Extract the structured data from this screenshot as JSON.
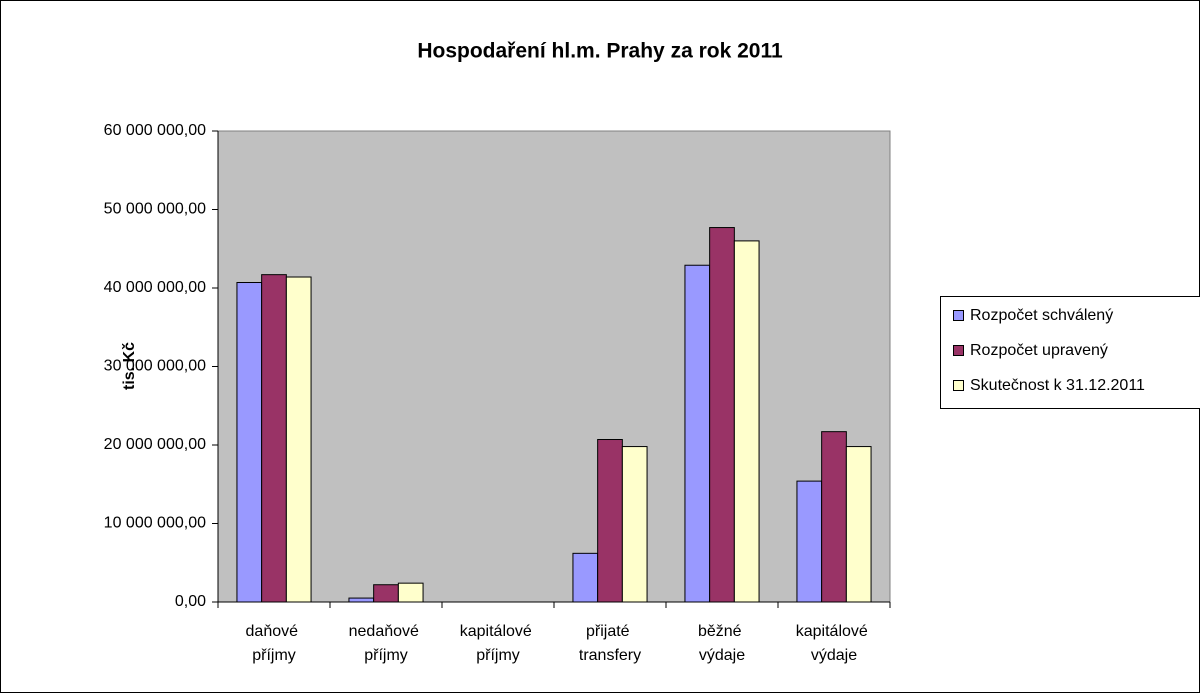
{
  "chart_data": {
    "type": "bar",
    "title": "Hospodaření hl.m. Prahy za rok 2011",
    "y_label": "tis. Kč",
    "categories": [
      "daňové příjmy",
      "nedaňové příjmy",
      "kapitálové příjmy",
      "přijaté transfery",
      "běžné výdaje",
      "kapitálové výdaje"
    ],
    "series": [
      {
        "name": "Rozpočet schválený",
        "color": "#9999ff",
        "values": [
          40700000,
          500000,
          0,
          6200000,
          42900000,
          15400000
        ]
      },
      {
        "name": "Rozpočet upravený",
        "color": "#993366",
        "values": [
          41700000,
          2200000,
          0,
          20700000,
          47700000,
          21700000
        ]
      },
      {
        "name": "Skutečnost k 31.12.2011",
        "color": "#ffffcc",
        "values": [
          41400000,
          2400000,
          0,
          19800000,
          46000000,
          19800000
        ]
      }
    ],
    "ylim": [
      0,
      60000000
    ],
    "yticks": [
      {
        "value": 0,
        "label": "0,00"
      },
      {
        "value": 10000000,
        "label": "10 000 000,00"
      },
      {
        "value": 20000000,
        "label": "20 000 000,00"
      },
      {
        "value": 30000000,
        "label": "30 000 000,00"
      },
      {
        "value": 40000000,
        "label": "40 000 000,00"
      },
      {
        "value": 50000000,
        "label": "50 000 000,00"
      },
      {
        "value": 60000000,
        "label": "60 000 000,00"
      }
    ],
    "legend": "right",
    "plot_background": "#c0c0c0"
  }
}
